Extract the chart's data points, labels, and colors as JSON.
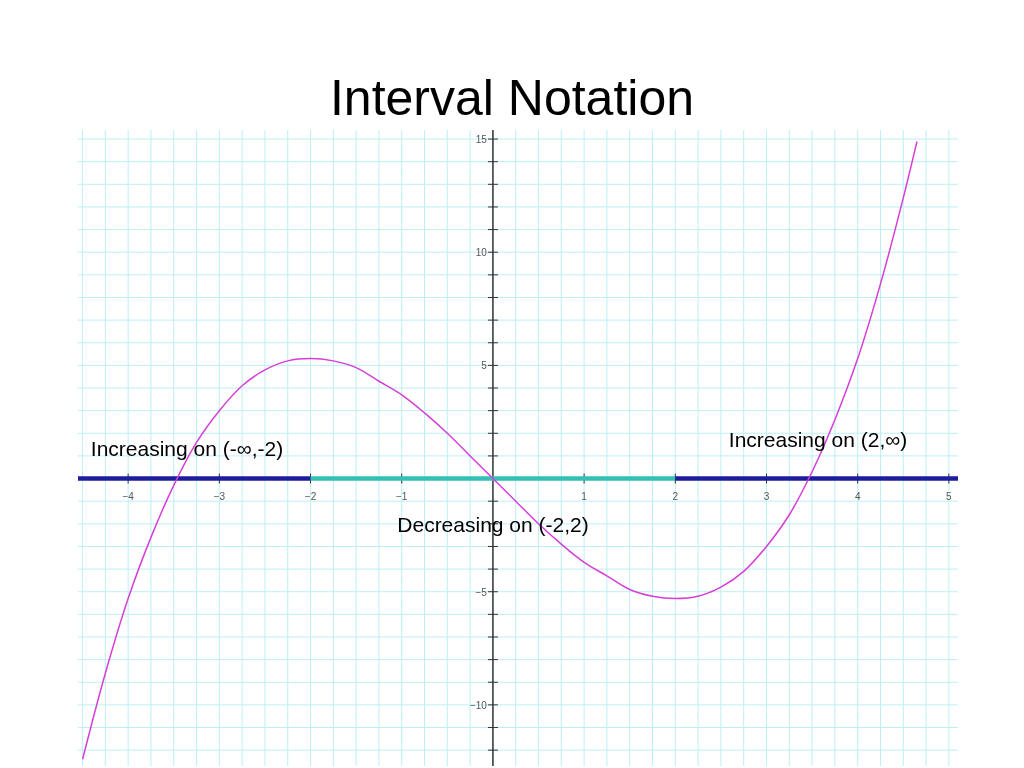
{
  "chart_data": {
    "type": "line",
    "title": "Interval Notation",
    "xlim": [
      -4.55,
      5.1
    ],
    "ylim": [
      -12.7,
      15.4
    ],
    "xticks": [
      {
        "value": -4.5,
        "label": null
      },
      {
        "value": -4.25,
        "label": null
      },
      -4,
      {
        "value": -3.75,
        "label": null
      },
      {
        "value": -3.5,
        "label": null
      },
      {
        "value": -3.25,
        "label": null
      },
      -3,
      {
        "value": -2.75,
        "label": null
      },
      {
        "value": -2.5,
        "label": null
      },
      {
        "value": -2.25,
        "label": null
      },
      -2,
      {
        "value": -1.75,
        "label": null
      },
      {
        "value": -1.5,
        "label": null
      },
      {
        "value": -1.25,
        "label": null
      },
      -1,
      {
        "value": -0.75,
        "label": null
      },
      {
        "value": -0.5,
        "label": null
      },
      {
        "value": -0.25,
        "label": null
      },
      {
        "value": 0,
        "label": null
      },
      {
        "value": 0.25,
        "label": null
      },
      {
        "value": 0.5,
        "label": null
      },
      {
        "value": 0.75,
        "label": null
      },
      1,
      {
        "value": 1.25,
        "label": null
      },
      {
        "value": 1.5,
        "label": null
      },
      {
        "value": 1.75,
        "label": null
      },
      2,
      {
        "value": 2.25,
        "label": null
      },
      {
        "value": 2.5,
        "label": null
      },
      {
        "value": 2.75,
        "label": null
      },
      3,
      {
        "value": 3.25,
        "label": null
      },
      {
        "value": 3.5,
        "label": null
      },
      {
        "value": 3.75,
        "label": null
      },
      4,
      {
        "value": 4.25,
        "label": null
      },
      {
        "value": 4.5,
        "label": null
      },
      {
        "value": 4.75,
        "label": null
      },
      5
    ],
    "yticks": [
      {
        "value": -12,
        "label": null
      },
      {
        "value": -11,
        "label": null
      },
      -10,
      {
        "value": -9,
        "label": null
      },
      {
        "value": -8,
        "label": null
      },
      {
        "value": -7,
        "label": null
      },
      {
        "value": -6,
        "label": null
      },
      -5,
      {
        "value": -4,
        "label": null
      },
      {
        "value": -3,
        "label": null
      },
      {
        "value": -2,
        "label": null
      },
      {
        "value": -1,
        "label": null
      },
      {
        "value": 1,
        "label": null
      },
      {
        "value": 2,
        "label": null
      },
      {
        "value": 3,
        "label": null
      },
      {
        "value": 4,
        "label": null
      },
      5,
      {
        "value": 6,
        "label": null
      },
      {
        "value": 7,
        "label": null
      },
      {
        "value": 8,
        "label": null
      },
      {
        "value": 9,
        "label": null
      },
      10,
      {
        "value": 11,
        "label": null
      },
      {
        "value": 12,
        "label": null
      },
      {
        "value": 13,
        "label": null
      },
      {
        "value": 14,
        "label": null
      },
      15
    ],
    "grid": true,
    "series": [
      {
        "color": "#1c1c9c",
        "x": [
          -4.55,
          -2
        ],
        "values": [
          0,
          0
        ]
      },
      {
        "color": "#33c0b5",
        "x": [
          -2,
          2
        ],
        "values": [
          0,
          0
        ]
      },
      {
        "color": "#1c1c9c",
        "x": [
          2,
          5.1
        ],
        "values": [
          0,
          0
        ]
      },
      {
        "color": "#d63fd6",
        "x": [
          -4.5,
          -4.25,
          -4,
          -3.75,
          -3.5,
          -3.25,
          -3,
          -2.75,
          -2.5,
          -2.25,
          -2,
          -1.75,
          -1.5,
          -1.25,
          -1,
          -0.75,
          -0.5,
          -0.25,
          0,
          0.25,
          0.5,
          0.75,
          1,
          1.25,
          1.5,
          1.75,
          2,
          2.25,
          2.5,
          2.75,
          3,
          3.25,
          3.5,
          3.75,
          4,
          4.25,
          4.5,
          4.65
        ],
        "values": [
          -12.4,
          -8.6,
          -5.3,
          -2.6,
          -0.3,
          1.6,
          3,
          4.1,
          4.8,
          5.2,
          5.3,
          5.2,
          4.9,
          4.3,
          3.7,
          2.9,
          2,
          1,
          0,
          -1,
          -2,
          -2.9,
          -3.7,
          -4.3,
          -4.9,
          -5.2,
          -5.3,
          -5.2,
          -4.8,
          -4.1,
          -3,
          -1.6,
          0.3,
          2.6,
          5.3,
          8.6,
          12.4,
          14.9
        ]
      }
    ],
    "annotations": [
      "Increasing on (-∞,-2)",
      "Increasing on (2,∞)",
      "Decreasing on (-2,2)"
    ]
  }
}
